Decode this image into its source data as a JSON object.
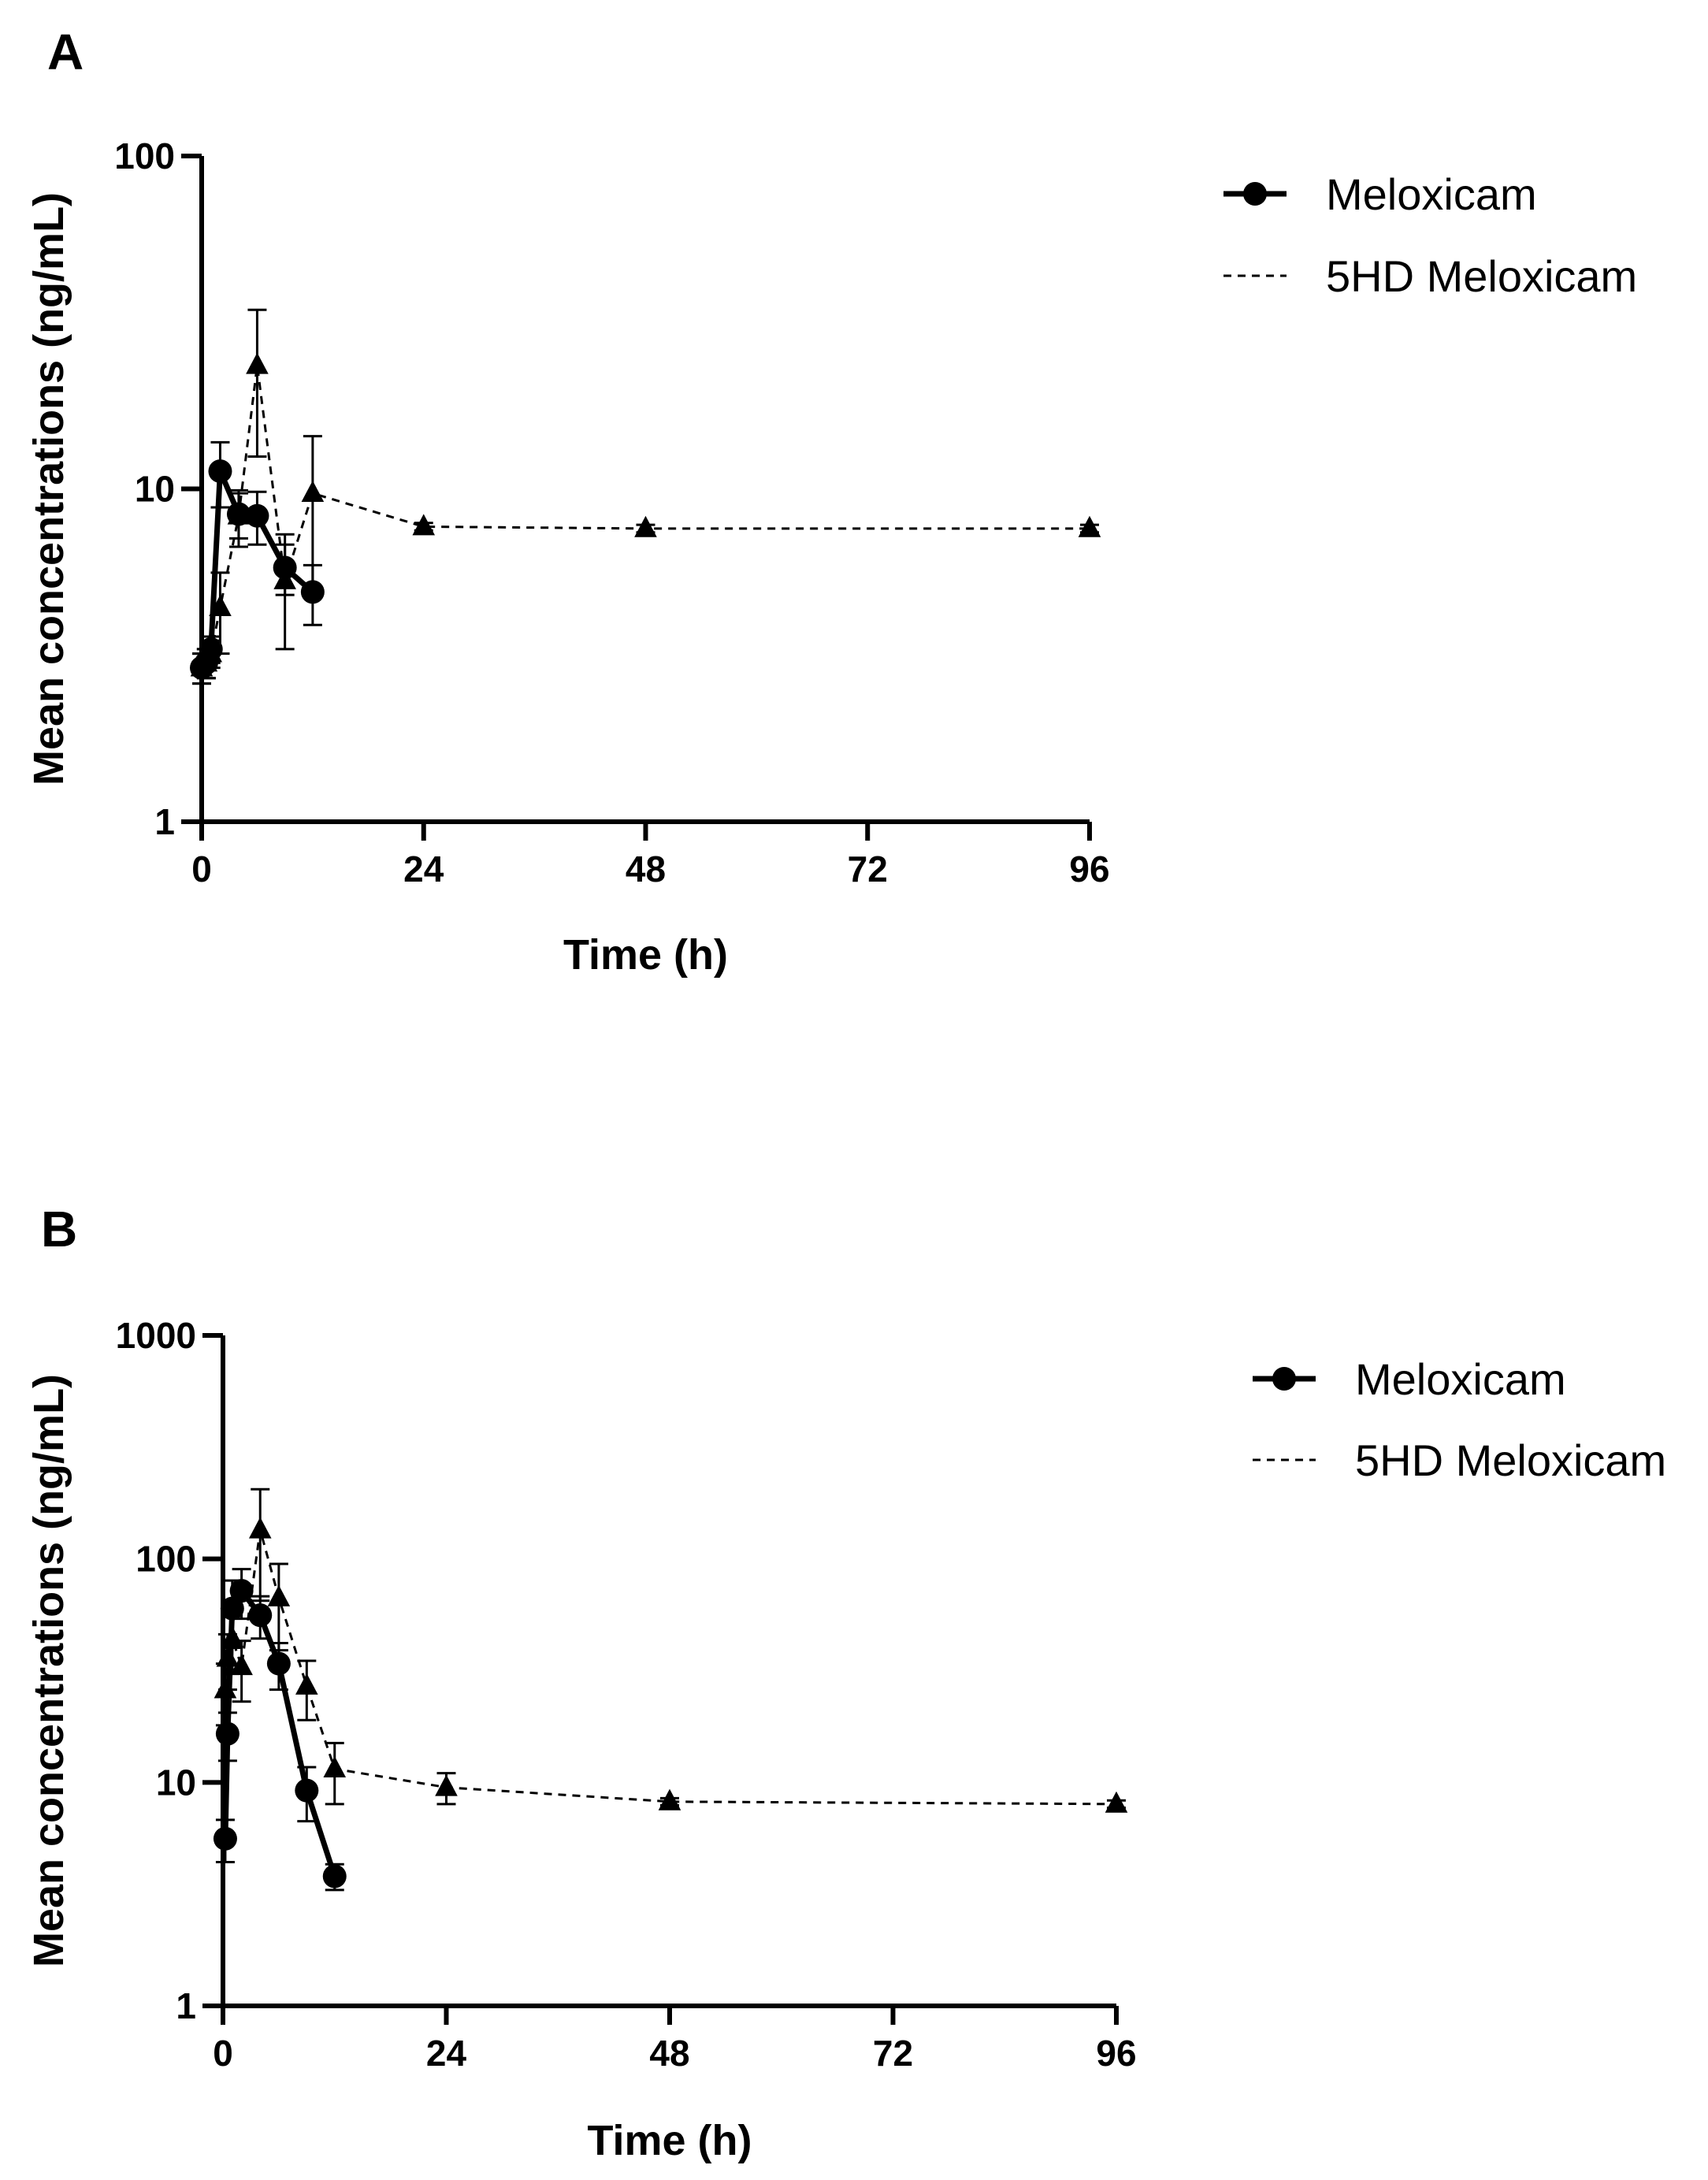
{
  "chart_data": [
    {
      "panel": "A",
      "type": "line",
      "title": "",
      "xlabel": "Time (h)",
      "ylabel": "Mean concentrations (ng/mL)",
      "xlim": [
        0,
        96
      ],
      "xticks": [
        0,
        24,
        48,
        72,
        96
      ],
      "xtick_labels": [
        "0",
        "24",
        "48",
        "72",
        "96"
      ],
      "yscale": "log",
      "ylim": [
        1,
        100
      ],
      "yticks": [
        1,
        10,
        100
      ],
      "ytick_labels": [
        "1",
        "10",
        "100"
      ],
      "legend_position": "top-right",
      "series": [
        {
          "name": "Meloxicam",
          "style": "solid",
          "marker": "circle",
          "x": [
            0,
            0.5,
            1,
            2,
            4,
            6,
            9,
            12
          ],
          "y": [
            2.9,
            3.0,
            3.3,
            11.3,
            8.4,
            8.3,
            5.8,
            4.9
          ],
          "err": [
            0.3,
            0.3,
            0.3,
            2.5,
            1.3,
            1.5,
            1.0,
            1.0
          ]
        },
        {
          "name": "5HD Meloxicam",
          "style": "dashed",
          "marker": "triangle",
          "x": [
            0,
            0.5,
            1,
            2,
            4,
            6,
            9,
            12,
            24,
            48,
            96
          ],
          "y": [
            2.9,
            3.0,
            3.2,
            4.4,
            8.3,
            23.5,
            5.3,
            9.7,
            7.7,
            7.6,
            7.6
          ],
          "err": [
            0.3,
            0.3,
            0.3,
            1.2,
            1.6,
            11.0,
            2.0,
            4.7,
            0.2,
            0.2,
            0.2
          ]
        }
      ]
    },
    {
      "panel": "B",
      "type": "line",
      "title": "",
      "xlabel": "Time (h)",
      "ylabel": "Mean concentrations (ng/mL)",
      "xlim": [
        0,
        96
      ],
      "xticks": [
        0,
        24,
        48,
        72,
        96
      ],
      "xtick_labels": [
        "0",
        "24",
        "48",
        "72",
        "96"
      ],
      "yscale": "log",
      "ylim": [
        1,
        1000
      ],
      "yticks": [
        1,
        10,
        100,
        1000
      ],
      "ytick_labels": [
        "1",
        "10",
        "100",
        "1000"
      ],
      "legend_position": "top-right",
      "series": [
        {
          "name": "Meloxicam",
          "style": "solid",
          "marker": "circle",
          "x": [
            0.25,
            0.5,
            1,
            2,
            4,
            6,
            9,
            12
          ],
          "y": [
            5.6,
            16.5,
            60,
            72,
            56,
            34,
            9.2,
            3.8
          ],
          "err": [
            1.2,
            4.0,
            20,
            18,
            12,
            8,
            2.5,
            0.5
          ]
        },
        {
          "name": "5HD Meloxicam",
          "style": "dashed",
          "marker": "triangle",
          "x": [
            0.25,
            0.5,
            1,
            2,
            4,
            6,
            9,
            12,
            24,
            48,
            96
          ],
          "y": [
            26,
            36,
            44,
            33,
            135,
            67,
            27,
            11.5,
            9.5,
            8.2,
            8.0
          ],
          "err": [
            8,
            10,
            12,
            10,
            70,
            28,
            8,
            3.5,
            1.5,
            0.3,
            0.3
          ]
        }
      ]
    }
  ]
}
